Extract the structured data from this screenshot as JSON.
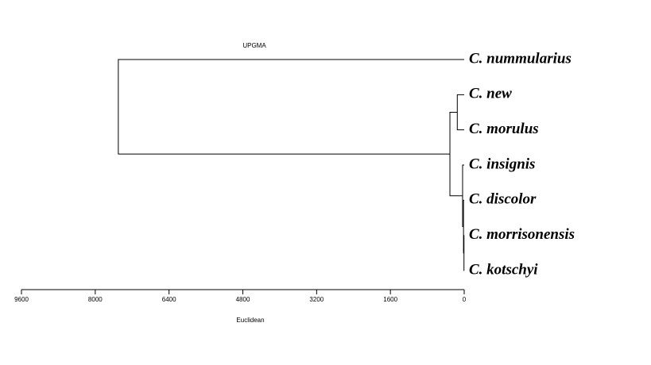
{
  "chart_data": {
    "type": "dendrogram",
    "title": "UPGMA",
    "x_label": "Euclidean",
    "leaves": [
      "C. nummularius",
      "C. new",
      "C. morulus",
      "C. insignis",
      "C. discolor",
      "C. morrisonensis",
      "C. kotschyi"
    ],
    "merges": [
      {
        "children": [
          5,
          6
        ],
        "height": 5
      },
      {
        "children": [
          4,
          7
        ],
        "height": 15
      },
      {
        "children": [
          3,
          8
        ],
        "height": 35
      },
      {
        "children": [
          1,
          2
        ],
        "height": 150
      },
      {
        "children": [
          10,
          9
        ],
        "height": 310
      },
      {
        "children": [
          0,
          11
        ],
        "height": 7500
      }
    ],
    "xlim": [
      9600,
      0
    ],
    "xticks": [
      9600,
      8000,
      6400,
      4800,
      3200,
      1600,
      0
    ]
  }
}
